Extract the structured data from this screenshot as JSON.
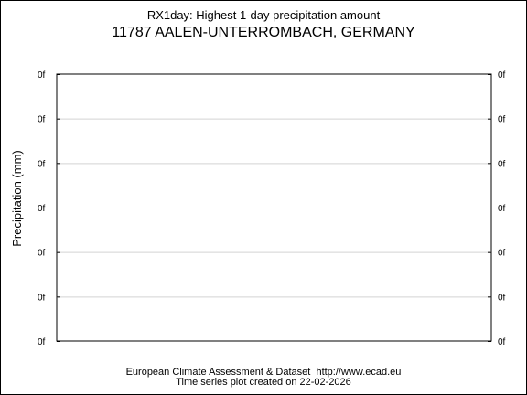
{
  "chart_data": {
    "type": "line",
    "title": "RX1day: Highest 1-day precipitation amount",
    "subtitle": "11787 AALEN-UNTERROMBACH, GERMANY",
    "ylabel": "Precipitation (mm)",
    "xlabel": "",
    "y_tick_labels": [
      "0f",
      "0f",
      "0f",
      "0f",
      "0f",
      "0f",
      "0f"
    ],
    "x_tick_labels": [],
    "series": [],
    "grid": true,
    "legend": "none"
  },
  "footer": {
    "line1": "European Climate Assessment & Dataset  http://www.ecad.eu",
    "line2": "Time series plot created on 22-02-2026"
  },
  "colors": {
    "background": "#ffffff",
    "axis": "#000000",
    "grid": "#d3d3d3"
  }
}
